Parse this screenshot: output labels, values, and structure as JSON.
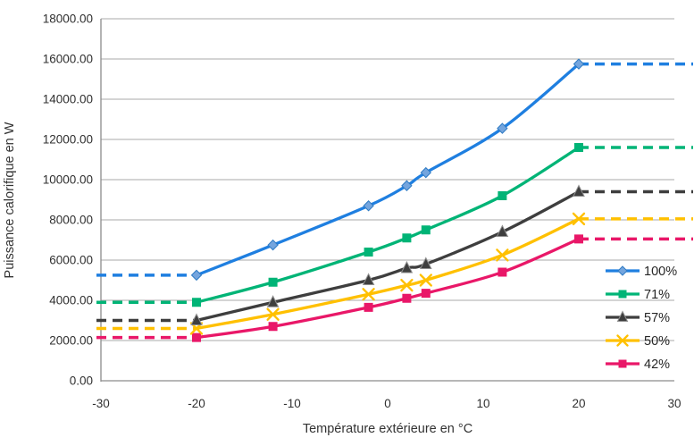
{
  "chart_data": {
    "type": "line",
    "title": "",
    "xlabel": "Température extérieure en °C",
    "ylabel": "Puissance calorifique en W",
    "xlim": [
      -30,
      30
    ],
    "ylim": [
      0,
      18000
    ],
    "grid": "horizontal-only",
    "legend_position": "right",
    "line_style": "smooth-with-markers",
    "x_ticks": [
      -30,
      -20,
      -10,
      0,
      10,
      20,
      30
    ],
    "x_tick_labels": [
      "-30",
      "-20",
      "-10",
      "0",
      "10",
      "20",
      "30"
    ],
    "y_ticks": [
      0,
      2000,
      4000,
      6000,
      8000,
      10000,
      12000,
      14000,
      16000,
      18000
    ],
    "y_tick_labels": [
      "0.00",
      "2000.00",
      "4000.00",
      "6000.00",
      "8000.00",
      "10000.00",
      "12000.00",
      "14000.00",
      "16000.00",
      "18000.00"
    ],
    "x": [
      -20,
      -12,
      -2,
      2,
      4,
      12,
      20
    ],
    "flat_extension": {
      "style": "dashed",
      "left_from_x": -30,
      "right_to_x": 30
    },
    "series": [
      {
        "name": "100%",
        "color": "#1f7fe0",
        "marker": "diamond",
        "values": [
          5250,
          6750,
          8700,
          9700,
          10350,
          12550,
          15750
        ]
      },
      {
        "name": "71%",
        "color": "#00b476",
        "marker": "square",
        "values": [
          3900,
          4900,
          6400,
          7100,
          7500,
          9200,
          11600
        ]
      },
      {
        "name": "57%",
        "color": "#3e3e3e",
        "marker": "triangle",
        "values": [
          3000,
          3900,
          5000,
          5600,
          5800,
          7400,
          9400
        ]
      },
      {
        "name": "50%",
        "color": "#ffc000",
        "marker": "x",
        "values": [
          2600,
          3300,
          4300,
          4750,
          5000,
          6250,
          8050
        ]
      },
      {
        "name": "42%",
        "color": "#e91768",
        "marker": "square",
        "values": [
          2150,
          2700,
          3650,
          4100,
          4350,
          5400,
          7050
        ]
      }
    ]
  },
  "colors": {
    "gridline": "#a8a8a8",
    "axis_line": "#8c8c8c",
    "tick_text": "#303030",
    "title_text": "#333333",
    "diamond_marker_fill": "#74a5de",
    "diamond_marker_stroke": "#2f7bc4",
    "triangle_marker_stroke": "#8f8f8f",
    "background": "#ffffff"
  }
}
